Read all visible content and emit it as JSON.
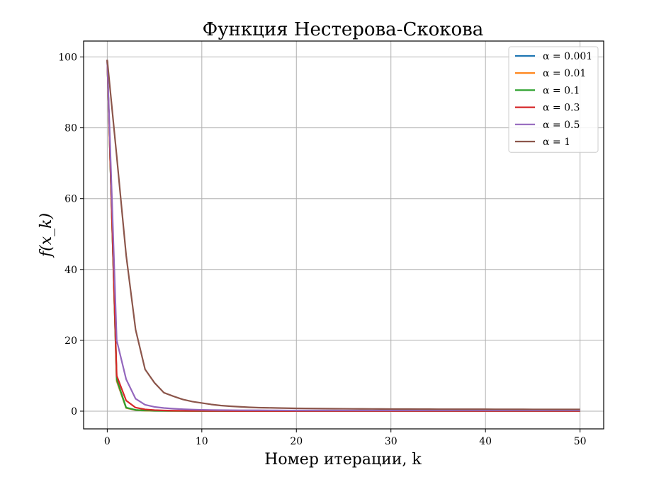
{
  "chart_data": {
    "type": "line",
    "title": "Функция Нестерова-Скокова",
    "xlabel": "Номер итерации, k",
    "ylabel": "f(x_k)",
    "xlim": [
      -2.5,
      52.5
    ],
    "ylim": [
      -5,
      104.5
    ],
    "x_ticks": [
      0,
      10,
      20,
      30,
      40,
      50
    ],
    "y_ticks": [
      0,
      20,
      40,
      60,
      80,
      100
    ],
    "grid": true,
    "legend_position": "top-right",
    "x": [
      0,
      1,
      2,
      3,
      4,
      5,
      6,
      7,
      8,
      9,
      10,
      11,
      12,
      13,
      14,
      15,
      16,
      17,
      18,
      19,
      20,
      21,
      22,
      23,
      24,
      25,
      26,
      27,
      28,
      29,
      30,
      31,
      32,
      33,
      34,
      35,
      36,
      37,
      38,
      39,
      40,
      41,
      42,
      43,
      44,
      45,
      46,
      47,
      48,
      49,
      50
    ],
    "series": [
      {
        "name": "α = 0.001",
        "color": "#1f77b4",
        "values": [
          99.2,
          8.5,
          0.9,
          0.3,
          0.15,
          0.1,
          0.08,
          0.07,
          0.06,
          0.05,
          0.04,
          0.04,
          0.03,
          0.03,
          0.03,
          0.03,
          0.02,
          0.02,
          0.02,
          0.02,
          0.02,
          0.02,
          0.02,
          0.02,
          0.02,
          0.02,
          0.02,
          0.02,
          0.02,
          0.02,
          0.02,
          0.02,
          0.02,
          0.02,
          0.02,
          0.02,
          0.02,
          0.02,
          0.02,
          0.02,
          0.02,
          0.02,
          0.02,
          0.02,
          0.02,
          0.02,
          0.02,
          0.02,
          0.02,
          0.02,
          0.02
        ]
      },
      {
        "name": "α = 0.01",
        "color": "#ff7f0e",
        "values": [
          99.2,
          8.6,
          0.9,
          0.3,
          0.15,
          0.1,
          0.08,
          0.07,
          0.06,
          0.05,
          0.04,
          0.04,
          0.03,
          0.03,
          0.03,
          0.03,
          0.02,
          0.02,
          0.02,
          0.02,
          0.02,
          0.02,
          0.02,
          0.02,
          0.02,
          0.02,
          0.02,
          0.02,
          0.02,
          0.02,
          0.02,
          0.02,
          0.02,
          0.02,
          0.02,
          0.02,
          0.02,
          0.02,
          0.02,
          0.02,
          0.02,
          0.02,
          0.02,
          0.02,
          0.02,
          0.02,
          0.02,
          0.02,
          0.02,
          0.02,
          0.02
        ]
      },
      {
        "name": "α = 0.1",
        "color": "#2ca02c",
        "values": [
          99.2,
          9.0,
          1.0,
          0.35,
          0.2,
          0.12,
          0.09,
          0.08,
          0.07,
          0.06,
          0.05,
          0.05,
          0.04,
          0.04,
          0.04,
          0.03,
          0.03,
          0.03,
          0.03,
          0.03,
          0.03,
          0.03,
          0.03,
          0.03,
          0.03,
          0.03,
          0.03,
          0.03,
          0.03,
          0.03,
          0.03,
          0.03,
          0.03,
          0.03,
          0.03,
          0.03,
          0.03,
          0.03,
          0.03,
          0.03,
          0.03,
          0.03,
          0.03,
          0.03,
          0.03,
          0.03,
          0.03,
          0.03,
          0.03,
          0.03,
          0.03
        ]
      },
      {
        "name": "α = 0.3",
        "color": "#d62728",
        "values": [
          99.2,
          10.0,
          3.0,
          1.0,
          0.5,
          0.3,
          0.2,
          0.15,
          0.12,
          0.1,
          0.08,
          0.07,
          0.06,
          0.05,
          0.05,
          0.05,
          0.04,
          0.04,
          0.04,
          0.04,
          0.04,
          0.04,
          0.04,
          0.04,
          0.04,
          0.04,
          0.04,
          0.04,
          0.04,
          0.04,
          0.04,
          0.04,
          0.04,
          0.04,
          0.04,
          0.04,
          0.04,
          0.04,
          0.04,
          0.04,
          0.04,
          0.04,
          0.04,
          0.04,
          0.04,
          0.04,
          0.04,
          0.04,
          0.04,
          0.04,
          0.04
        ]
      },
      {
        "name": "α = 0.5",
        "color": "#9467bd",
        "values": [
          99.2,
          20.0,
          9.0,
          3.5,
          1.8,
          1.2,
          0.9,
          0.7,
          0.55,
          0.45,
          0.38,
          0.33,
          0.3,
          0.28,
          0.26,
          0.25,
          0.24,
          0.23,
          0.22,
          0.21,
          0.2,
          0.2,
          0.2,
          0.2,
          0.2,
          0.2,
          0.2,
          0.2,
          0.2,
          0.2,
          0.2,
          0.2,
          0.2,
          0.2,
          0.2,
          0.2,
          0.2,
          0.2,
          0.2,
          0.2,
          0.2,
          0.2,
          0.2,
          0.2,
          0.2,
          0.2,
          0.2,
          0.2,
          0.2,
          0.2,
          0.2
        ]
      },
      {
        "name": "α = 1",
        "color": "#8c564b",
        "values": [
          99.2,
          72.0,
          44.0,
          23.0,
          11.8,
          8.0,
          5.2,
          4.2,
          3.3,
          2.7,
          2.3,
          1.9,
          1.6,
          1.4,
          1.25,
          1.1,
          1.0,
          0.95,
          0.9,
          0.85,
          0.8,
          0.77,
          0.74,
          0.72,
          0.7,
          0.68,
          0.66,
          0.64,
          0.63,
          0.62,
          0.61,
          0.6,
          0.59,
          0.58,
          0.57,
          0.56,
          0.56,
          0.55,
          0.55,
          0.54,
          0.54,
          0.53,
          0.53,
          0.52,
          0.52,
          0.51,
          0.51,
          0.5,
          0.5,
          0.5,
          0.5
        ]
      }
    ]
  }
}
